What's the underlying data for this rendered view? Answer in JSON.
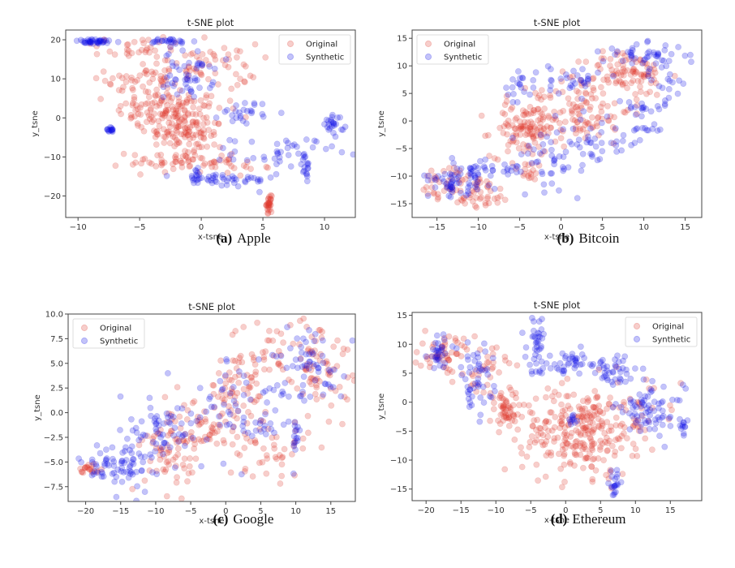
{
  "chart_data": [
    {
      "type": "scatter",
      "title": "t-SNE plot",
      "caption_label": "(a)",
      "caption_text": "Apple",
      "xlabel": "x-tsne",
      "ylabel": "y_tsne",
      "xlim": [
        -11,
        12.5
      ],
      "ylim": [
        -25.5,
        22.5
      ],
      "xticks": [
        -10,
        -5,
        0,
        5,
        10
      ],
      "yticks": [
        -20,
        -10,
        0,
        10,
        20
      ],
      "legend": {
        "position": "top-right",
        "entries": [
          "Original",
          "Synthetic"
        ]
      },
      "series": [
        {
          "name": "Original",
          "color": "#e03c31",
          "clusters": [
            {
              "cx": -2.5,
              "cy": 2,
              "sx": 2.2,
              "sy": 2.5,
              "n": 120
            },
            {
              "cx": -1.2,
              "cy": -4,
              "sx": 1.6,
              "sy": 2,
              "n": 80
            },
            {
              "cx": -1.5,
              "cy": -11,
              "sx": 2.2,
              "sy": 1.5,
              "n": 70
            },
            {
              "cx": -4.5,
              "cy": 10,
              "sx": 1.6,
              "sy": 4,
              "n": 60
            },
            {
              "cx": 0.5,
              "cy": 13,
              "sx": 2,
              "sy": 3,
              "n": 60
            },
            {
              "cx": -6,
              "cy": 18,
              "sx": 2.5,
              "sy": 1.5,
              "n": 25
            },
            {
              "cx": 5.5,
              "cy": -22,
              "sx": 0.1,
              "sy": 1,
              "n": 30
            },
            {
              "cx": 4,
              "cy": -13.5,
              "sx": 0.8,
              "sy": 0.8,
              "n": 8
            }
          ]
        },
        {
          "name": "Synthetic",
          "color": "#1010e8",
          "clusters": [
            {
              "cx": -8.5,
              "cy": 19.5,
              "sx": 1,
              "sy": 0.3,
              "n": 40
            },
            {
              "cx": -2.5,
              "cy": 19.5,
              "sx": 1,
              "sy": 0.5,
              "n": 25
            },
            {
              "cx": -1,
              "cy": 11,
              "sx": 1,
              "sy": 3,
              "n": 50
            },
            {
              "cx": -7.4,
              "cy": -3,
              "sx": 0.15,
              "sy": 0.3,
              "n": 15
            },
            {
              "cx": 3.5,
              "cy": 1.5,
              "sx": 1,
              "sy": 1.5,
              "n": 25
            },
            {
              "cx": 10.8,
              "cy": -1.5,
              "sx": 0.4,
              "sy": 1.5,
              "n": 25
            },
            {
              "cx": 6.5,
              "cy": -9,
              "sx": 2,
              "sy": 2,
              "n": 40
            },
            {
              "cx": 2,
              "cy": -16,
              "sx": 2,
              "sy": 1,
              "n": 40
            },
            {
              "cx": -0.5,
              "cy": -15,
              "sx": 0.3,
              "sy": 1,
              "n": 15
            },
            {
              "cx": 8.5,
              "cy": -13,
              "sx": 0.3,
              "sy": 2,
              "n": 15
            }
          ]
        }
      ]
    },
    {
      "type": "scatter",
      "title": "t-SNE plot",
      "caption_label": "(b)",
      "caption_text": "Bitcoin",
      "xlabel": "x-tsne",
      "ylabel": "y_tsne",
      "xlim": [
        -18,
        17
      ],
      "ylim": [
        -17.5,
        16.5
      ],
      "xticks": [
        -15,
        -10,
        -5,
        0,
        5,
        10,
        15
      ],
      "yticks": [
        -15,
        -10,
        -5,
        0,
        5,
        10,
        15
      ],
      "legend": {
        "position": "top-left",
        "entries": [
          "Original",
          "Synthetic"
        ]
      },
      "series": [
        {
          "name": "Original",
          "color": "#e03c31",
          "clusters": [
            {
              "cx": -4.5,
              "cy": -1.5,
              "sx": 2,
              "sy": 2.5,
              "n": 110
            },
            {
              "cx": 2.5,
              "cy": 2,
              "sx": 3,
              "sy": 3,
              "n": 110
            },
            {
              "cx": 8,
              "cy": 8.5,
              "sx": 2.5,
              "sy": 2,
              "n": 90
            },
            {
              "cx": -10,
              "cy": -13,
              "sx": 2,
              "sy": 1.5,
              "n": 50
            },
            {
              "cx": -14,
              "cy": -11,
              "sx": 1.5,
              "sy": 1.5,
              "n": 30
            },
            {
              "cx": -4,
              "cy": -9,
              "sx": 1,
              "sy": 1,
              "n": 15
            }
          ]
        },
        {
          "name": "Synthetic",
          "color": "#1010e8",
          "clusters": [
            {
              "cx": -12,
              "cy": -10,
              "sx": 2,
              "sy": 1.5,
              "n": 50
            },
            {
              "cx": -13.3,
              "cy": -12,
              "sx": 0.3,
              "sy": 0.8,
              "n": 15
            },
            {
              "cx": -5,
              "cy": 6.5,
              "sx": 1,
              "sy": 1.5,
              "n": 20
            },
            {
              "cx": 1.5,
              "cy": 7.5,
              "sx": 1.5,
              "sy": 1.5,
              "n": 30
            },
            {
              "cx": 0,
              "cy": -6,
              "sx": 2.5,
              "sy": 3,
              "n": 50
            },
            {
              "cx": 5,
              "cy": -4,
              "sx": 2.5,
              "sy": 2,
              "n": 30
            },
            {
              "cx": 10,
              "cy": 12,
              "sx": 2.5,
              "sy": 1,
              "n": 40
            },
            {
              "cx": 12.5,
              "cy": 8,
              "sx": 1.5,
              "sy": 2.5,
              "n": 25
            },
            {
              "cx": 9,
              "cy": 2,
              "sx": 1.5,
              "sy": 1,
              "n": 15
            },
            {
              "cx": 10.5,
              "cy": -1.5,
              "sx": 1,
              "sy": 0.5,
              "n": 10
            },
            {
              "cx": -7,
              "cy": -8.5,
              "sx": 2.5,
              "sy": 0.8,
              "n": 25
            }
          ]
        }
      ]
    },
    {
      "type": "scatter",
      "title": "t-SNE plot",
      "caption_label": "(c)",
      "caption_text": "Google",
      "xlabel": "x-tsne",
      "ylabel": "y_tsne",
      "xlim": [
        -22.5,
        18.5
      ],
      "ylim": [
        -9,
        10
      ],
      "xticks": [
        -20,
        -15,
        -10,
        -5,
        0,
        5,
        10,
        15
      ],
      "yticks": [
        -7.5,
        -5.0,
        -2.5,
        0.0,
        2.5,
        5.0,
        7.5,
        10.0
      ],
      "legend": {
        "position": "top-left",
        "entries": [
          "Original",
          "Synthetic"
        ]
      },
      "series": [
        {
          "name": "Original",
          "color": "#e03c31",
          "clusters": [
            {
              "cx": -8,
              "cy": -3.5,
              "sx": 1.8,
              "sy": 2.3,
              "n": 70
            },
            {
              "cx": -3,
              "cy": -2,
              "sx": 2,
              "sy": 2,
              "n": 50
            },
            {
              "cx": 2,
              "cy": 2.5,
              "sx": 2,
              "sy": 2,
              "n": 60
            },
            {
              "cx": 6,
              "cy": -3.5,
              "sx": 3,
              "sy": 1.5,
              "n": 50
            },
            {
              "cx": 13,
              "cy": 5,
              "sx": 2.5,
              "sy": 2.5,
              "n": 80
            },
            {
              "cx": 5,
              "cy": 6.5,
              "sx": 2,
              "sy": 1.5,
              "n": 25
            },
            {
              "cx": -19.5,
              "cy": -5.6,
              "sx": 0.8,
              "sy": 0.25,
              "n": 20
            }
          ]
        },
        {
          "name": "Synthetic",
          "color": "#1010e8",
          "clusters": [
            {
              "cx": -16,
              "cy": -5.5,
              "sx": 2.5,
              "sy": 1.3,
              "n": 60
            },
            {
              "cx": -11,
              "cy": -3,
              "sx": 2,
              "sy": 2.5,
              "n": 50
            },
            {
              "cx": -6,
              "cy": -1.5,
              "sx": 2,
              "sy": 2,
              "n": 30
            },
            {
              "cx": 2,
              "cy": 1,
              "sx": 3,
              "sy": 2.5,
              "n": 50
            },
            {
              "cx": 12,
              "cy": 5,
              "sx": 2.5,
              "sy": 2,
              "n": 60
            },
            {
              "cx": 10,
              "cy": -3,
              "sx": 0.5,
              "sy": 1.2,
              "n": 15
            },
            {
              "cx": 5.5,
              "cy": -1.5,
              "sx": 1,
              "sy": 0.5,
              "n": 10
            }
          ]
        }
      ]
    },
    {
      "type": "scatter",
      "title": "t-SNE plot",
      "caption_label": "(d)",
      "caption_text": "Ethereum",
      "xlabel": "x-tsne",
      "ylabel": "y_tsne",
      "xlim": [
        -22,
        19.5
      ],
      "ylim": [
        -17,
        15.5
      ],
      "xticks": [
        -20,
        -15,
        -10,
        -5,
        0,
        5,
        10,
        15
      ],
      "yticks": [
        -15,
        -10,
        -5,
        0,
        5,
        10,
        15
      ],
      "legend": {
        "position": "top-right",
        "entries": [
          "Original",
          "Synthetic"
        ]
      },
      "series": [
        {
          "name": "Original",
          "color": "#e03c31",
          "clusters": [
            {
              "cx": 2,
              "cy": -5,
              "sx": 4,
              "sy": 3.8,
              "n": 260
            },
            {
              "cx": -8.5,
              "cy": -1.5,
              "sx": 1.5,
              "sy": 2,
              "n": 60
            },
            {
              "cx": -17,
              "cy": 8,
              "sx": 2,
              "sy": 1.8,
              "n": 60
            },
            {
              "cx": -11.5,
              "cy": 6,
              "sx": 1.5,
              "sy": 2,
              "n": 25
            },
            {
              "cx": 10,
              "cy": -2,
              "sx": 3,
              "sy": 3,
              "n": 30
            }
          ]
        },
        {
          "name": "Synthetic",
          "color": "#1010e8",
          "clusters": [
            {
              "cx": -18,
              "cy": 8.5,
              "sx": 0.8,
              "sy": 1.5,
              "n": 30
            },
            {
              "cx": -13,
              "cy": 4,
              "sx": 1.3,
              "sy": 3,
              "n": 50
            },
            {
              "cx": -4,
              "cy": 10,
              "sx": 0.8,
              "sy": 2.5,
              "n": 40
            },
            {
              "cx": 1,
              "cy": 6.5,
              "sx": 4,
              "sy": 1.2,
              "n": 50
            },
            {
              "cx": 7.5,
              "cy": 5,
              "sx": 1.5,
              "sy": 1.5,
              "n": 30
            },
            {
              "cx": 12,
              "cy": -1.5,
              "sx": 2.5,
              "sy": 2,
              "n": 70
            },
            {
              "cx": 16.8,
              "cy": -4,
              "sx": 0.3,
              "sy": 0.8,
              "n": 12
            },
            {
              "cx": 7,
              "cy": -14,
              "sx": 0.4,
              "sy": 1,
              "n": 20
            },
            {
              "cx": 1,
              "cy": -3,
              "sx": 0.3,
              "sy": 0.3,
              "n": 10
            }
          ]
        }
      ]
    }
  ]
}
